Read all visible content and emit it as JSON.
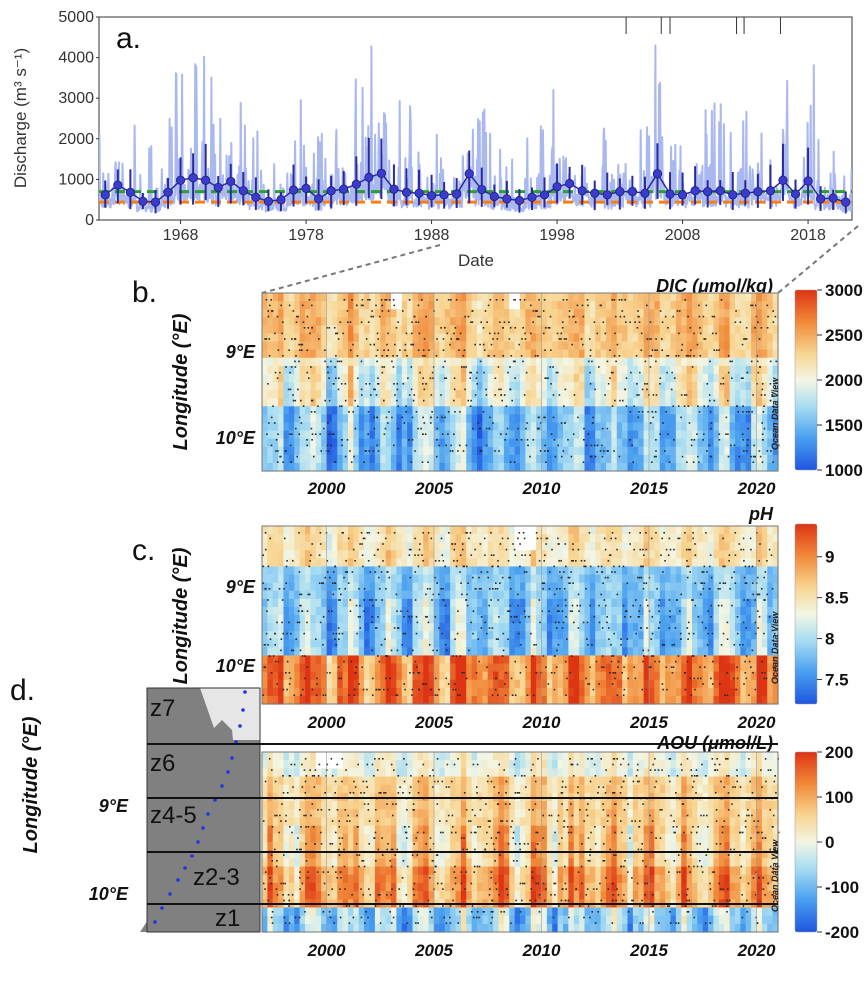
{
  "chart_data": [
    {
      "panel": "a.",
      "type": "line",
      "xlabel": "Date",
      "ylabel": "Discharge (m³ s⁻¹)",
      "xticks": [
        "1968",
        "1978",
        "1988",
        "1998",
        "2008",
        "2018"
      ],
      "yticks": [
        "0",
        "1000",
        "2000",
        "3000",
        "4000",
        "5000"
      ],
      "ylim": [
        0,
        5000
      ],
      "xlim": [
        1961.5,
        2021.5
      ],
      "reference_lines": [
        {
          "color": "#2ca02c",
          "style": "dashed",
          "value": 700
        },
        {
          "color": "#ff7f0e",
          "style": "dashed",
          "value": 440
        }
      ],
      "annual_mean": {
        "years": [
          1962,
          1963,
          1964,
          1965,
          1966,
          1967,
          1968,
          1969,
          1970,
          1971,
          1972,
          1973,
          1974,
          1975,
          1976,
          1977,
          1978,
          1979,
          1980,
          1981,
          1982,
          1983,
          1984,
          1985,
          1986,
          1987,
          1988,
          1989,
          1990,
          1991,
          1992,
          1993,
          1994,
          1995,
          1996,
          1997,
          1998,
          1999,
          2000,
          2001,
          2002,
          2003,
          2004,
          2005,
          2006,
          2007,
          2008,
          2009,
          2010,
          2011,
          2012,
          2013,
          2014,
          2015,
          2016,
          2017,
          2018,
          2019,
          2020,
          2021
        ],
        "values": [
          620,
          860,
          680,
          460,
          440,
          680,
          980,
          1040,
          980,
          800,
          950,
          720,
          560,
          460,
          500,
          740,
          780,
          520,
          720,
          760,
          880,
          1050,
          1150,
          760,
          680,
          660,
          600,
          620,
          640,
          1140,
          750,
          580,
          520,
          480,
          560,
          620,
          820,
          900,
          720,
          660,
          620,
          700,
          700,
          660,
          1140,
          640,
          620,
          720,
          700,
          720,
          620,
          660,
          700,
          720,
          980,
          640,
          960,
          520,
          540,
          440
        ]
      },
      "top_event_marks": [
        2003.5,
        2006.3,
        2007.0,
        2012.3,
        2012.9,
        2015.8
      ]
    },
    {
      "panel": "b.",
      "type": "heatmap",
      "title": "DIC (μmol/kg)",
      "ylabel": "Longitude (°E)",
      "yticks": [
        "9°E",
        "10°E"
      ],
      "xticks": [
        "2000",
        "2005",
        "2010",
        "2015",
        "2020"
      ],
      "colorbar": {
        "ticks": [
          "3000",
          "2500",
          "2000",
          "1500",
          "1000"
        ],
        "min": 1000,
        "max": 3000
      },
      "watermark": "Ocean Data View"
    },
    {
      "panel": "c.",
      "type": "heatmap",
      "title": "pH",
      "ylabel": "Longitude (°E)",
      "yticks": [
        "9°E",
        "10°E"
      ],
      "xticks": [
        "2000",
        "2005",
        "2010",
        "2015",
        "2020"
      ],
      "colorbar": {
        "ticks": [
          "9",
          "8.5",
          "8",
          "7.5"
        ],
        "min": 7.2,
        "max": 9.4
      },
      "watermark": "Ocean Data View"
    },
    {
      "panel": "d.",
      "type": "heatmap",
      "title": "AOU (μmol/L)",
      "ylabel": "Longitude (°E)",
      "yticks": [
        "9°E",
        "10°E"
      ],
      "xticks": [
        "2000",
        "2005",
        "2010",
        "2015",
        "2020"
      ],
      "colorbar": {
        "ticks": [
          "200",
          "100",
          "0",
          "-100",
          "-200"
        ],
        "min": -200,
        "max": 200
      },
      "watermark": "Ocean Data View",
      "zones": [
        "z7",
        "z6",
        "z4-5",
        "z2-3",
        "z1"
      ]
    }
  ],
  "colors": {
    "series_line": "#aab8f0",
    "series_mean": "#2a2aa0",
    "green_line": "#2ca02c",
    "orange_line": "#ff7f0e",
    "cold": "#2f7fe0",
    "neutral": "#f3f3e6",
    "warm": "#f6c37c",
    "hot": "#e44a1c"
  }
}
